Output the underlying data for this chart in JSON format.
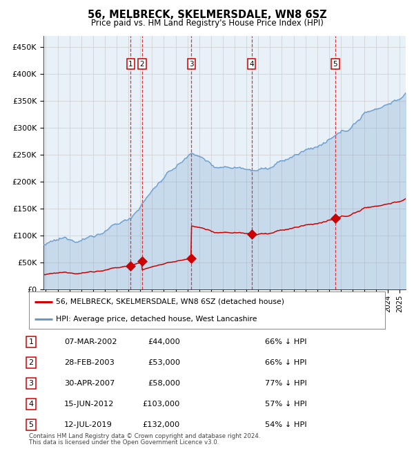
{
  "title": "56, MELBRECK, SKELMERSDALE, WN8 6SZ",
  "subtitle": "Price paid vs. HM Land Registry's House Price Index (HPI)",
  "legend_red": "56, MELBRECK, SKELMERSDALE, WN8 6SZ (detached house)",
  "legend_blue": "HPI: Average price, detached house, West Lancashire",
  "footer1": "Contains HM Land Registry data © Crown copyright and database right 2024.",
  "footer2": "This data is licensed under the Open Government Licence v3.0.",
  "transactions": [
    {
      "num": 1,
      "date": "07-MAR-2002",
      "price": 44000,
      "pct": "66%",
      "year_x": 2002.18
    },
    {
      "num": 2,
      "date": "28-FEB-2003",
      "price": 53000,
      "pct": "66%",
      "year_x": 2003.16
    },
    {
      "num": 3,
      "date": "30-APR-2007",
      "price": 58000,
      "pct": "77%",
      "year_x": 2007.33
    },
    {
      "num": 4,
      "date": "15-JUN-2012",
      "price": 103000,
      "pct": "57%",
      "year_x": 2012.45
    },
    {
      "num": 5,
      "date": "12-JUL-2019",
      "price": 132000,
      "pct": "54%",
      "year_x": 2019.53
    }
  ],
  "red_color": "#cc0000",
  "blue_color": "#6699cc",
  "blue_fill_alpha": 0.25,
  "grid_color": "#cccccc",
  "vline_color": "#dd2222",
  "bg_color": "#ffffff",
  "plot_bg": "#e8f0f8",
  "ylim": [
    0,
    470000
  ],
  "xlim_start": 1994.8,
  "xlim_end": 2025.5,
  "yticks": [
    0,
    50000,
    100000,
    150000,
    200000,
    250000,
    300000,
    350000,
    400000,
    450000
  ],
  "ylabels": [
    "£0",
    "£50K",
    "£100K",
    "£150K",
    "£200K",
    "£250K",
    "£300K",
    "£350K",
    "£400K",
    "£450K"
  ]
}
